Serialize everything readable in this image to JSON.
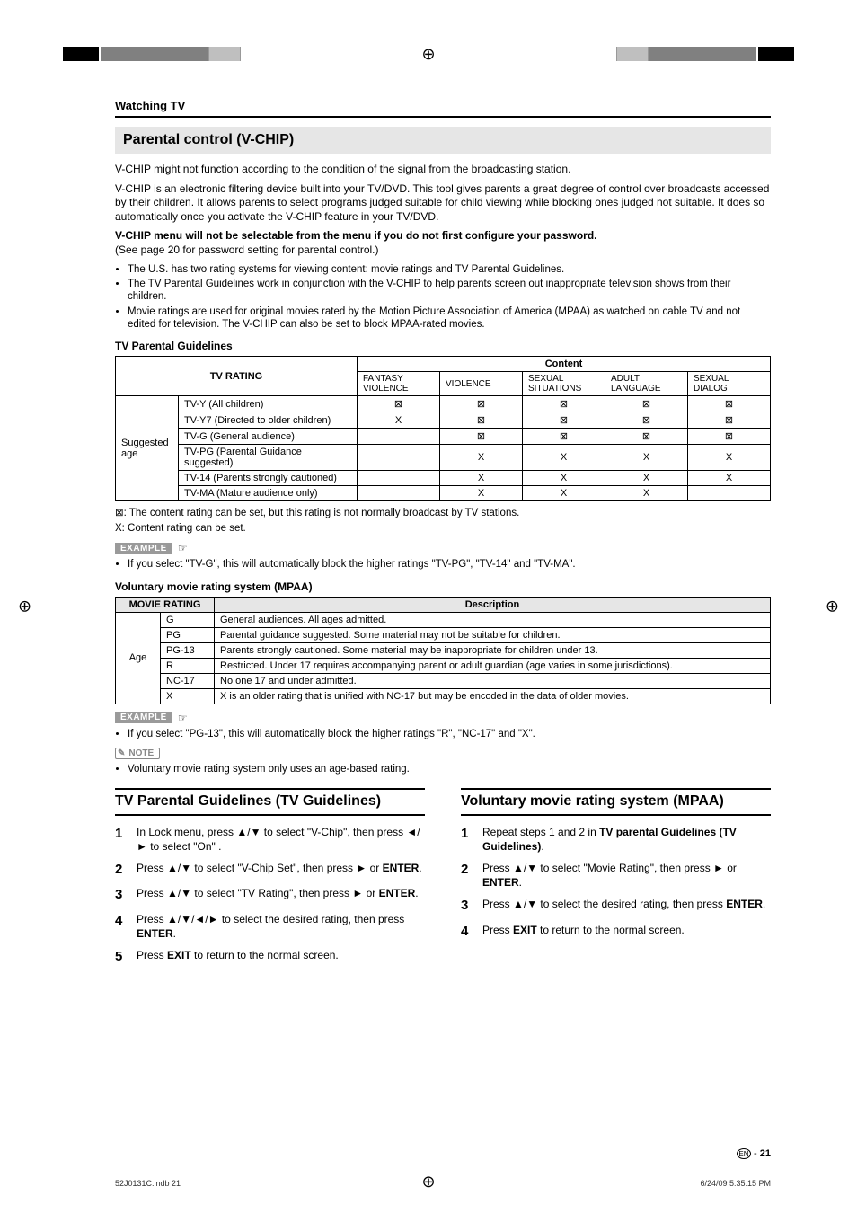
{
  "header": {
    "breadcrumb": "Watching TV",
    "title": "Parental control (V-CHIP)"
  },
  "intro": {
    "p1": "V-CHIP might not function according to the condition of the signal from the broadcasting station.",
    "p2": "V-CHIP is an electronic filtering device built into your TV/DVD. This tool gives parents a great degree of control over broadcasts accessed by their children. It allows parents to select programs judged suitable for child viewing while blocking ones judged not suitable. It does so automatically once you activate the V-CHIP feature in your TV/DVD.",
    "bold_line": "V-CHIP menu will not be selectable from the menu if you do not first configure your password.",
    "p3": "(See page 20 for password setting for parental control.)",
    "bullets": [
      "The U.S. has two rating systems for viewing content: movie ratings and TV Parental Guidelines.",
      "The TV Parental Guidelines work in conjunction with the V-CHIP to help parents screen out inappropriate television shows from their children.",
      "Movie ratings are used for original movies rated by the Motion Picture Association of America (MPAA) as watched on cable TV and not edited for television. The V-CHIP can also be set to block MPAA-rated movies."
    ]
  },
  "tv_guidelines_table": {
    "heading": "TV Parental Guidelines",
    "rating_header": "TV RATING",
    "content_header": "Content",
    "content_cols": [
      "FANTASY VIOLENCE",
      "VIOLENCE",
      "SEXUAL SITUATIONS",
      "ADULT LANGUAGE",
      "SEXUAL DIALOG"
    ],
    "age_label": "Suggested age",
    "rows": [
      {
        "label": "TV-Y (All children)",
        "cells": [
          "⊠",
          "⊠",
          "⊠",
          "⊠",
          "⊠"
        ]
      },
      {
        "label": "TV-Y7 (Directed to older children)",
        "cells": [
          "X",
          "⊠",
          "⊠",
          "⊠",
          "⊠"
        ]
      },
      {
        "label": "TV-G (General audience)",
        "cells": [
          "",
          "⊠",
          "⊠",
          "⊠",
          "⊠"
        ]
      },
      {
        "label": "TV-PG (Parental Guidance suggested)",
        "cells": [
          "",
          "X",
          "X",
          "X",
          "X"
        ]
      },
      {
        "label": "TV-14 (Parents strongly cautioned)",
        "cells": [
          "",
          "X",
          "X",
          "X",
          "X"
        ]
      },
      {
        "label": "TV-MA (Mature audience only)",
        "cells": [
          "",
          "X",
          "X",
          "X",
          ""
        ]
      }
    ],
    "legend1": "⊠: The content rating can be set, but this rating is not normally broadcast by TV stations.",
    "legend2": "X:  Content rating can be set."
  },
  "example1": {
    "tag": "EXAMPLE",
    "text": "If you select \"TV-G\", this will automatically block the higher ratings \"TV-PG\", \"TV-14\" and \"TV-MA\"."
  },
  "mpaa_table": {
    "heading": "Voluntary movie rating system (MPAA)",
    "movie_header": "MOVIE RATING",
    "desc_header": "Description",
    "age_label": "Age",
    "rows": [
      {
        "code": "G",
        "desc": "General audiences. All ages admitted."
      },
      {
        "code": "PG",
        "desc": "Parental guidance suggested. Some material may not be suitable for children."
      },
      {
        "code": "PG-13",
        "desc": "Parents strongly cautioned. Some material may be inappropriate for children under 13."
      },
      {
        "code": "R",
        "desc": "Restricted. Under 17 requires accompanying parent or adult guardian (age varies in some jurisdictions)."
      },
      {
        "code": "NC-17",
        "desc": "No one 17 and under admitted."
      },
      {
        "code": "X",
        "desc": "X is an older rating that is unified with NC-17 but may be encoded in the data of older movies."
      }
    ]
  },
  "example2": {
    "tag": "EXAMPLE",
    "text": "If you select \"PG-13\", this will automatically block the higher ratings \"R\", \"NC-17\" and \"X\"."
  },
  "note": {
    "tag": "NOTE",
    "text": "Voluntary movie rating system only uses an age-based rating."
  },
  "left_steps": {
    "title": "TV Parental Guidelines (TV Guidelines)",
    "items": [
      "In Lock menu, press ▲/▼ to select \"V-Chip\", then press ◄/► to select \"On\" .",
      "Press ▲/▼ to select \"V-Chip Set\", then press ► or <b>ENTER</b>.",
      "Press ▲/▼ to select \"TV Rating\", then press ► or <b>ENTER</b>.",
      "Press ▲/▼/◄/► to select the desired rating, then press <b>ENTER</b>.",
      "Press <b>EXIT</b> to return to the normal screen."
    ]
  },
  "right_steps": {
    "title": "Voluntary movie rating system (MPAA)",
    "items": [
      "Repeat steps 1 and 2 in <b>TV parental Guidelines (TV Guidelines)</b>.",
      "Press ▲/▼ to select \"Movie Rating\", then press ► or <b>ENTER</b>.",
      "Press ▲/▼ to select the desired rating, then press <b>ENTER</b>.",
      "Press <b>EXIT</b> to return to the normal screen."
    ]
  },
  "footer": {
    "lang_code": "EN",
    "page": "21",
    "file": "52J0131C.indb   21",
    "timestamp": "6/24/09   5:35:15 PM"
  }
}
